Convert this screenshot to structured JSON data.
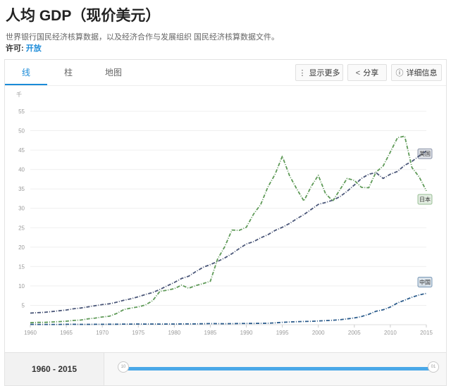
{
  "title": "人均 GDP（现价美元）",
  "description": "世界银行国民经济核算数据，以及经济合作与发展组织 国民经济核算数据文件。",
  "license": {
    "label": "许可:",
    "link": "开放"
  },
  "tabs": [
    {
      "label": "线"
    },
    {
      "label": "柱"
    },
    {
      "label": "地图"
    }
  ],
  "actions": {
    "show_more": "显示更多",
    "share": "分享",
    "details": "详细信息"
  },
  "icons": {
    "show_more": "vertical-dots-icon",
    "share": "share-icon",
    "details": "info-icon"
  },
  "footer": {
    "range": "1960 - 2015",
    "slider_start": 0.0,
    "slider_end": 1.0,
    "handle_left_text": "10",
    "handle_right_text": "01"
  },
  "colors": {
    "usa": "#4a5678",
    "japan": "#5f9a58",
    "china": "#2c5c8c",
    "accent": "#1b8bd8"
  },
  "chart_data": {
    "type": "line",
    "y_unit": "千",
    "ylim": [
      0,
      57
    ],
    "yticks": [
      5,
      10,
      15,
      20,
      25,
      30,
      35,
      40,
      45,
      50,
      55
    ],
    "xlim": [
      1960,
      2015
    ],
    "xticks": [
      1960,
      1965,
      1970,
      1975,
      1980,
      1985,
      1990,
      1995,
      2000,
      2005,
      2010,
      2015
    ],
    "x": [
      1960,
      1961,
      1962,
      1963,
      1964,
      1965,
      1966,
      1967,
      1968,
      1969,
      1970,
      1971,
      1972,
      1973,
      1974,
      1975,
      1976,
      1977,
      1978,
      1979,
      1980,
      1981,
      1982,
      1983,
      1984,
      1985,
      1986,
      1987,
      1988,
      1989,
      1990,
      1991,
      1992,
      1993,
      1994,
      1995,
      1996,
      1997,
      1998,
      1999,
      2000,
      2001,
      2002,
      2003,
      2004,
      2005,
      2006,
      2007,
      2008,
      2009,
      2010,
      2011,
      2012,
      2013,
      2014,
      2015
    ],
    "series": [
      {
        "key": "usa",
        "name": "美国",
        "values": [
          3.0,
          3.1,
          3.2,
          3.4,
          3.6,
          3.8,
          4.1,
          4.3,
          4.6,
          4.9,
          5.2,
          5.4,
          5.8,
          6.3,
          6.7,
          7.2,
          7.8,
          8.3,
          9.1,
          10.0,
          10.9,
          11.9,
          12.5,
          13.7,
          14.8,
          15.5,
          16.3,
          17.2,
          18.3,
          19.6,
          20.8,
          21.4,
          22.4,
          23.2,
          24.3,
          25.1,
          26.1,
          27.3,
          28.4,
          29.7,
          31.0,
          31.5,
          32.1,
          33.0,
          34.4,
          36.0,
          37.7,
          38.8,
          39.2,
          37.7,
          38.8,
          39.5,
          41.1,
          42.1,
          43.5,
          44.8
        ]
      },
      {
        "key": "japan",
        "name": "日本",
        "values": [
          0.5,
          0.6,
          0.6,
          0.7,
          0.8,
          0.9,
          1.1,
          1.2,
          1.5,
          1.7,
          2.0,
          2.2,
          2.9,
          3.9,
          4.3,
          4.6,
          5.1,
          6.2,
          8.6,
          8.9,
          9.3,
          10.2,
          9.4,
          10.1,
          10.6,
          11.2,
          16.9,
          20.1,
          24.4,
          24.3,
          25.1,
          28.5,
          31.0,
          35.5,
          38.8,
          43.4,
          38.4,
          35.0,
          31.9,
          35.6,
          38.5,
          33.8,
          31.9,
          34.8,
          37.7,
          37.2,
          35.4,
          35.3,
          39.3,
          40.9,
          44.5,
          48.2,
          48.6,
          40.5,
          38.1,
          34.5
        ]
      },
      {
        "key": "china",
        "name": "中国",
        "values": [
          0.09,
          0.08,
          0.07,
          0.07,
          0.08,
          0.1,
          0.1,
          0.09,
          0.09,
          0.1,
          0.11,
          0.12,
          0.13,
          0.16,
          0.16,
          0.18,
          0.16,
          0.18,
          0.16,
          0.18,
          0.19,
          0.2,
          0.2,
          0.22,
          0.25,
          0.29,
          0.28,
          0.25,
          0.28,
          0.31,
          0.32,
          0.33,
          0.37,
          0.38,
          0.47,
          0.61,
          0.71,
          0.78,
          0.83,
          0.87,
          0.96,
          1.05,
          1.15,
          1.29,
          1.51,
          1.75,
          2.1,
          2.69,
          3.47,
          3.84,
          4.56,
          5.61,
          6.34,
          7.08,
          7.68,
          8.07
        ]
      }
    ]
  }
}
